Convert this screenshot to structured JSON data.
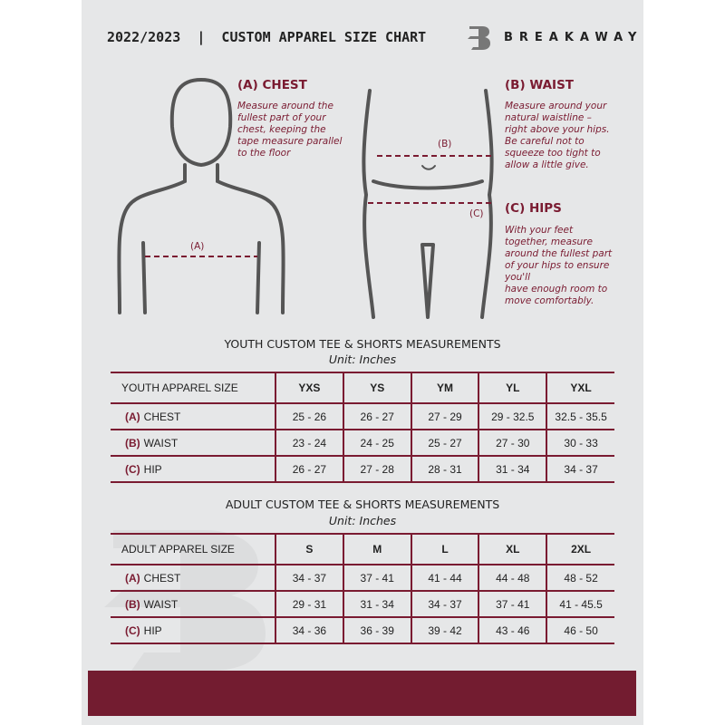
{
  "header": {
    "title": "2022/2023  |  CUSTOM APPAREL SIZE CHART",
    "brand": "BREAKAWAY",
    "logo_letter": "B"
  },
  "guides": {
    "chest": {
      "title": "(A) CHEST",
      "marker": "(A)",
      "lines": [
        "Measure around the",
        "fullest part of your",
        "chest, keeping the",
        "tape measure parallel",
        "to the floor"
      ]
    },
    "waist": {
      "title": "(B) WAIST",
      "marker": "(B)",
      "lines": [
        "Measure around your",
        "natural waistline –",
        "right above your hips.",
        "Be careful not to",
        "squeeze too tight to",
        "allow a little give."
      ]
    },
    "hips": {
      "title": "(C) HIPS",
      "marker": "(C)",
      "lines": [
        "With your feet",
        "together, measure",
        "around the fullest part",
        "of your hips to ensure",
        "you'll",
        "have enough room to",
        "move comfortably."
      ]
    }
  },
  "youth": {
    "title": "YOUTH CUSTOM TEE & SHORTS MEASUREMENTS",
    "unit": "Unit: Inches",
    "header": "YOUTH APPAREL SIZE",
    "sizes": [
      "YXS",
      "YS",
      "YM",
      "YL",
      "YXL"
    ],
    "rows": [
      {
        "code": "(A)",
        "label": "CHEST",
        "values": [
          "25 - 26",
          "26 - 27",
          "27 - 29",
          "29 - 32.5",
          "32.5 - 35.5"
        ]
      },
      {
        "code": "(B)",
        "label": "WAIST",
        "values": [
          "23 - 24",
          "24 - 25",
          "25 - 27",
          "27 - 30",
          "30 - 33"
        ]
      },
      {
        "code": "(C)",
        "label": "HIP",
        "values": [
          "26 - 27",
          "27 - 28",
          "28 - 31",
          "31 - 34",
          "34 - 37"
        ]
      }
    ]
  },
  "adult": {
    "title": "ADULT CUSTOM TEE & SHORTS MEASUREMENTS",
    "unit": "Unit: Inches",
    "header": "ADULT APPAREL SIZE",
    "sizes": [
      "S",
      "M",
      "L",
      "XL",
      "2XL"
    ],
    "rows": [
      {
        "code": "(A)",
        "label": "CHEST",
        "values": [
          "34 - 37",
          "37 - 41",
          "41 - 44",
          "44 - 48",
          "48 - 52"
        ]
      },
      {
        "code": "(B)",
        "label": "WAIST",
        "values": [
          "29 - 31",
          "31 - 34",
          "34 - 37",
          "37 - 41",
          "41 - 45.5"
        ]
      },
      {
        "code": "(C)",
        "label": "HIP",
        "values": [
          "34 - 36",
          "36 - 39",
          "39 - 42",
          "43 - 46",
          "46 - 50"
        ]
      }
    ]
  },
  "colors": {
    "accent": "#7a1b31",
    "footer": "#731c30",
    "background": "#e6e7e8"
  }
}
